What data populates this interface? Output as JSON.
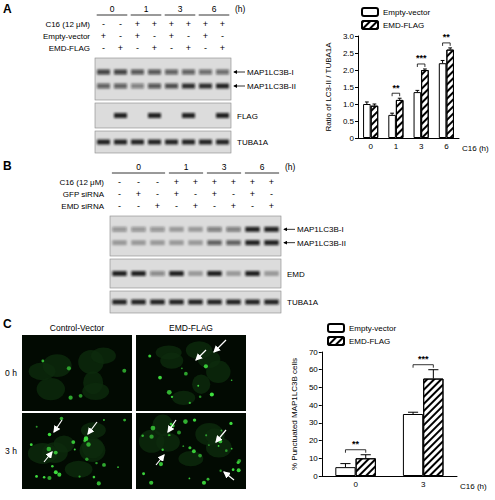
{
  "chart_data": [
    {
      "type": "bar",
      "ylabel": "Ratio of LC3-II / TUBA1A",
      "xlabel": "C16 (h)",
      "categories": [
        "0",
        "1",
        "3",
        "6"
      ],
      "series": [
        {
          "name": "Empty-vector",
          "color": "#ffffff",
          "values": [
            1.0,
            0.68,
            1.35,
            2.2
          ],
          "errors": [
            0.06,
            0.05,
            0.05,
            0.08
          ]
        },
        {
          "name": "EMD-FLAG",
          "color": "#ffffff",
          "values": [
            0.95,
            1.12,
            2.0,
            2.6
          ],
          "errors": [
            0.05,
            0.05,
            0.03,
            0.05
          ]
        }
      ],
      "ylim": [
        0,
        3
      ],
      "yticks": [
        0,
        0.5,
        {
          "value": 1,
          "label": "1.0"
        },
        1.5,
        {
          "value": 2,
          "label": "2.0"
        },
        2.5,
        {
          "value": 3,
          "label": "3.0"
        }
      ],
      "annotations": [
        {
          "category": "1",
          "text": "**"
        },
        {
          "category": "3",
          "text": "***"
        },
        {
          "category": "6",
          "text": "**"
        }
      ],
      "legend": "top-left",
      "grid": false
    },
    {
      "type": "bar",
      "ylabel": "% Punctuated MAP1LC3B cells",
      "xlabel": "C16 (h)",
      "categories": [
        "0",
        "3"
      ],
      "series": [
        {
          "name": "Empty-vector",
          "color": "#ffffff",
          "values": [
            5,
            35
          ],
          "errors": [
            2,
            1
          ]
        },
        {
          "name": "EMD-FLAG",
          "color": "#ffffff",
          "values": [
            10,
            55
          ],
          "errors": [
            2,
            5
          ]
        }
      ],
      "ylim": [
        0,
        70
      ],
      "yticks": [
        0,
        10,
        20,
        30,
        40,
        50,
        60,
        70
      ],
      "annotations": [
        {
          "category": "0",
          "text": "**"
        },
        {
          "category": "3",
          "text": "***"
        }
      ],
      "legend": "top-left",
      "grid": false
    }
  ],
  "blot_a": {
    "letter": "A",
    "time_groups": [
      {
        "label": "0",
        "span": 2
      },
      {
        "label": "1",
        "span": 2
      },
      {
        "label": "3",
        "span": 2
      },
      {
        "label": "6",
        "span": 2
      }
    ],
    "time_unit": "(h)",
    "rows": [
      {
        "label": "C16 (12 μM)",
        "signs": [
          "-",
          "-",
          "+",
          "+",
          "+",
          "+",
          "+",
          "+"
        ]
      },
      {
        "label": "Empty-vector",
        "signs": [
          "+",
          "-",
          "+",
          "-",
          "+",
          "-",
          "+",
          "-"
        ]
      },
      {
        "label": "EMD-FLAG",
        "signs": [
          "-",
          "+",
          "-",
          "+",
          "-",
          "+",
          "-",
          "+"
        ]
      }
    ],
    "boxes": [
      {
        "bands": [
          {
            "label": "MAP1LC3B-I",
            "intensity": [
              0.75,
              0.75,
              0.65,
              0.65,
              0.6,
              0.6,
              0.55,
              0.55
            ]
          },
          {
            "label": "MAP1LC3B-II",
            "intensity": [
              0.6,
              0.6,
              0.45,
              0.65,
              0.7,
              0.85,
              0.85,
              0.9
            ]
          }
        ]
      },
      {
        "bands": [
          {
            "label": "FLAG",
            "intensity": [
              0,
              0.9,
              0,
              0.9,
              0,
              0.9,
              0,
              0.9
            ]
          }
        ]
      },
      {
        "bands": [
          {
            "label": "TUBA1A",
            "intensity": [
              0.9,
              0.9,
              0.9,
              0.9,
              0.9,
              0.9,
              0.9,
              0.9
            ]
          }
        ]
      }
    ]
  },
  "blot_b": {
    "letter": "B",
    "time_groups": [
      {
        "label": "0",
        "span": 3
      },
      {
        "label": "1",
        "span": 2
      },
      {
        "label": "3",
        "span": 2
      },
      {
        "label": "6",
        "span": 2
      }
    ],
    "time_unit": "(h)",
    "rows": [
      {
        "label": "C16 (12 μM)",
        "signs": [
          "-",
          "-",
          "-",
          "+",
          "+",
          "+",
          "+",
          "+",
          "+"
        ]
      },
      {
        "label": "GFP siRNA",
        "signs": [
          "-",
          "+",
          "-",
          "+",
          "-",
          "+",
          "-",
          "+",
          "-"
        ]
      },
      {
        "label": "EMD siRNA",
        "signs": [
          "-",
          "-",
          "+",
          "-",
          "+",
          "-",
          "+",
          "-",
          "+"
        ]
      }
    ],
    "boxes": [
      {
        "bands": [
          {
            "label": "MAP1LC3B-I",
            "intensity": [
              0.35,
              0.35,
              0.35,
              0.3,
              0.3,
              0.45,
              0.45,
              0.9,
              0.9
            ]
          },
          {
            "label": "MAP1LC3B-II",
            "intensity": [
              0.3,
              0.3,
              0.3,
              0.3,
              0.3,
              0.6,
              0.6,
              0.9,
              0.9
            ]
          }
        ]
      },
      {
        "bands": [
          {
            "label": "EMD",
            "intensity": [
              0.9,
              0.9,
              0.4,
              0.9,
              0.3,
              0.9,
              0.3,
              0.9,
              0.3
            ]
          }
        ]
      },
      {
        "bands": [
          {
            "label": "TUBA1A",
            "intensity": [
              0.9,
              0.9,
              0.9,
              0.9,
              0.9,
              0.9,
              0.9,
              0.9,
              0.9
            ]
          }
        ]
      }
    ]
  },
  "micrographs": {
    "letter": "C",
    "columns": [
      "Control-Vector",
      "EMD-FLAG"
    ],
    "rows": [
      "0 h",
      "3 h"
    ]
  }
}
